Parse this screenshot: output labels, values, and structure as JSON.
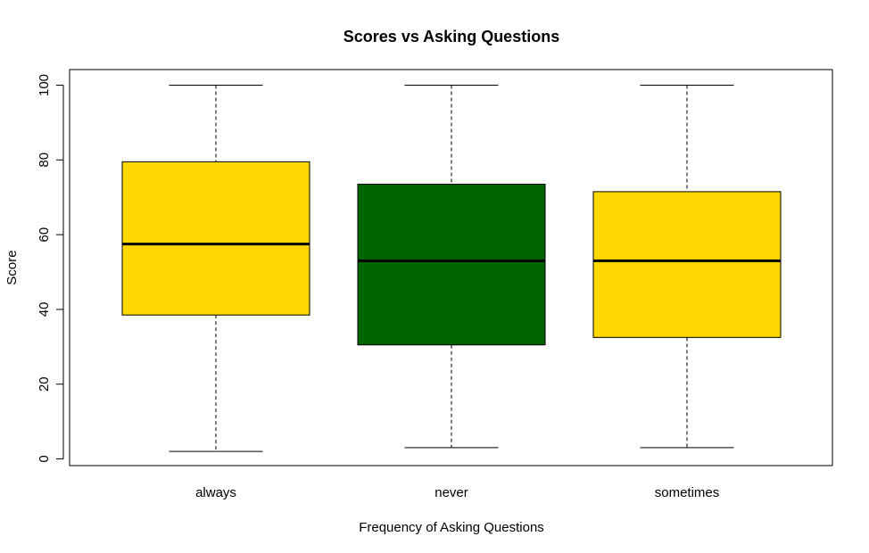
{
  "chart_data": {
    "type": "boxplot",
    "title": "Scores vs Asking Questions",
    "xlabel": "Frequency of Asking Questions",
    "ylabel": "Score",
    "ylim": [
      0,
      100
    ],
    "yticks": [
      0,
      20,
      40,
      60,
      80,
      100
    ],
    "categories": [
      "always",
      "never",
      "sometimes"
    ],
    "boxes": [
      {
        "category": "always",
        "min": 2,
        "q1": 38.5,
        "median": 57.5,
        "q3": 79.5,
        "max": 100,
        "color": "#FFD700"
      },
      {
        "category": "never",
        "min": 3,
        "q1": 30.5,
        "median": 53,
        "q3": 73.5,
        "max": 100,
        "color": "#006400"
      },
      {
        "category": "sometimes",
        "min": 3,
        "q1": 32.5,
        "median": 53,
        "q3": 71.5,
        "max": 100,
        "color": "#FFD700"
      }
    ],
    "grid": false,
    "legend": "none"
  }
}
